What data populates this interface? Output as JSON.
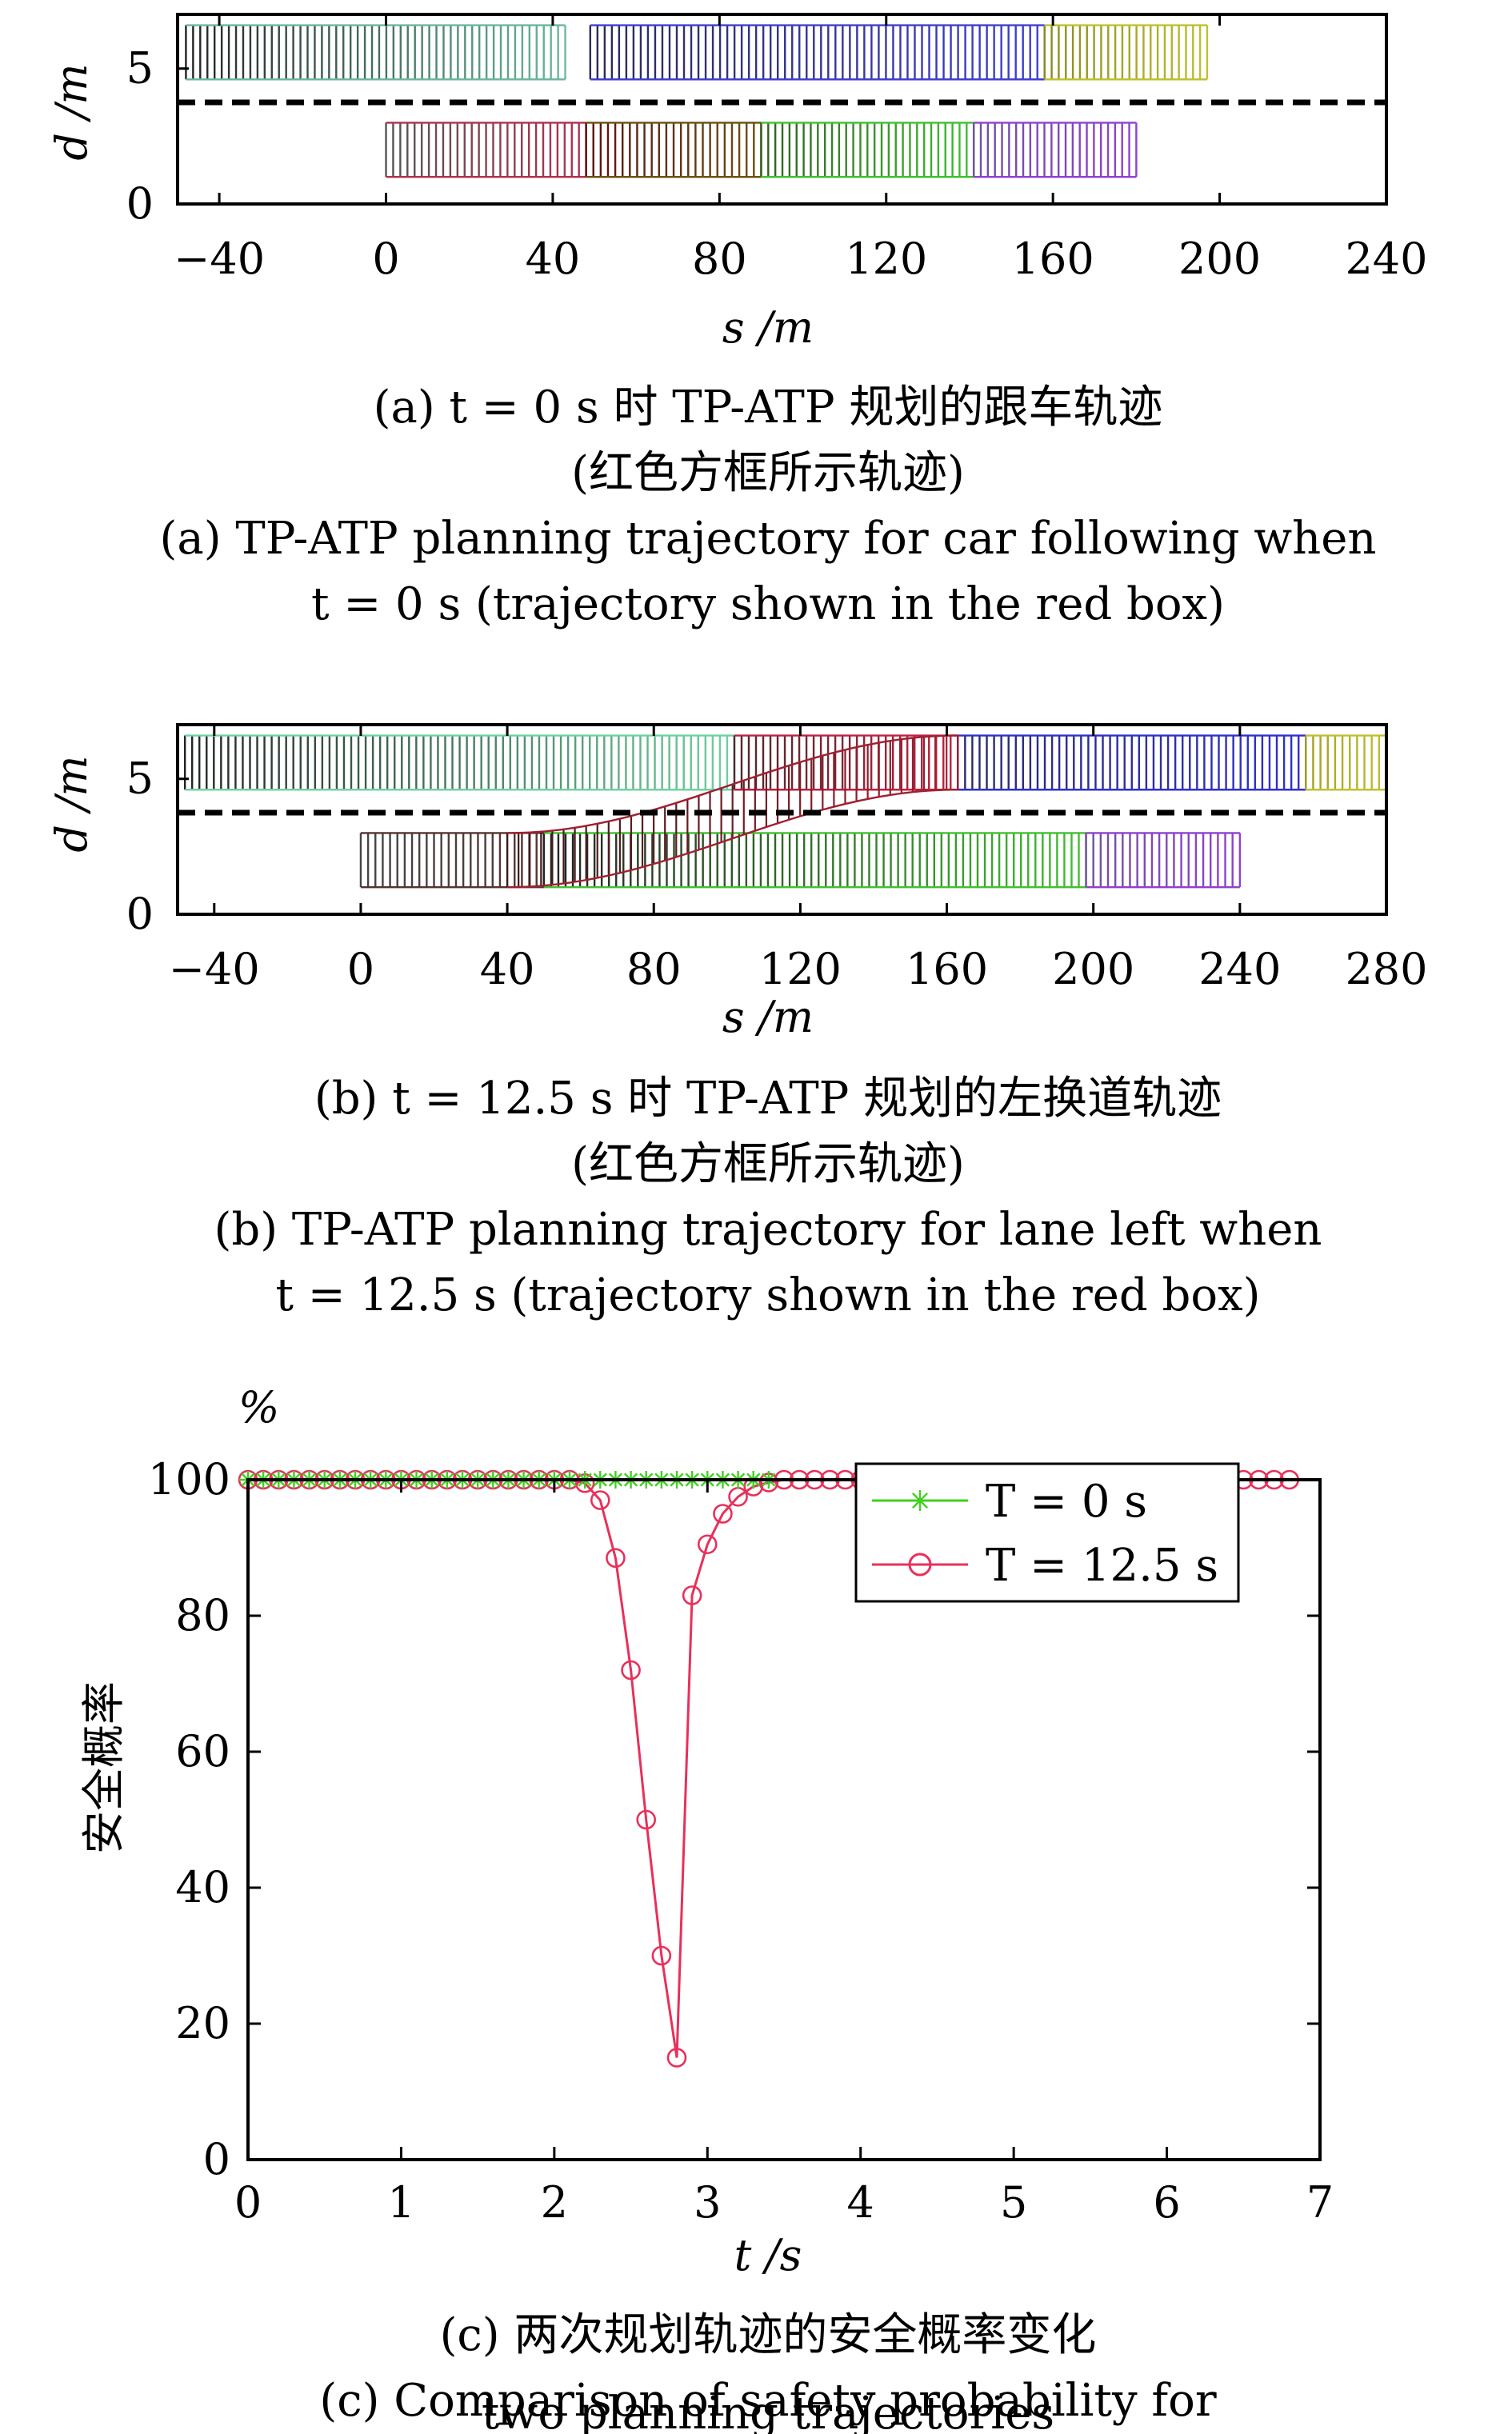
{
  "chart_data": [
    {
      "type": "scatter",
      "xlabel": "s /m",
      "ylabel": "d /m",
      "xlim": [
        -50,
        240
      ],
      "ylim": [
        0,
        7
      ],
      "xticks": [
        "-40",
        "0",
        "40",
        "80",
        "120",
        "160",
        "200",
        "240"
      ],
      "yticks": [
        "0",
        "5"
      ],
      "lane_divider_d": 3.75,
      "boxes": [
        {
          "s0": -48,
          "s1": 43,
          "d0": 4.6,
          "d1": 6.6,
          "color0": "#222222",
          "color1": "#6ab8a0"
        },
        {
          "s0": 49,
          "s1": 158,
          "d0": 4.6,
          "d1": 6.6,
          "color0": "#2a2a55",
          "color1": "#4040d0"
        },
        {
          "s0": 158,
          "s1": 197,
          "d0": 4.6,
          "d1": 6.6,
          "color0": "#8a8a20",
          "color1": "#c0c030"
        },
        {
          "s0": 0,
          "s1": 48,
          "d0": 1.0,
          "d1": 3.0,
          "color0": "#555555",
          "color1": "#b03050"
        },
        {
          "s0": 48,
          "s1": 90,
          "d0": 1.0,
          "d1": 3.0,
          "color0": "#5a1010",
          "color1": "#6a5010"
        },
        {
          "s0": 90,
          "s1": 141,
          "d0": 1.0,
          "d1": 3.0,
          "color0": "#306020",
          "color1": "#40c030"
        },
        {
          "s0": 141,
          "s1": 180,
          "d0": 1.0,
          "d1": 3.0,
          "color0": "#7050a0",
          "color1": "#9040d0"
        }
      ],
      "caption_cn_1": "(a) t = 0 s 时 TP-ATP 规划的跟车轨迹",
      "caption_cn_2": "(红色方框所示轨迹)",
      "caption_en_1": "(a) TP-ATP planning trajectory for car following when",
      "caption_en_2": "t = 0 s (trajectory shown in the red box)"
    },
    {
      "type": "scatter",
      "xlabel": "s /m",
      "ylabel": "d /m",
      "xlim": [
        -50,
        280
      ],
      "ylim": [
        0,
        7
      ],
      "xticks": [
        "-40",
        "0",
        "40",
        "80",
        "120",
        "160",
        "200",
        "240",
        "280"
      ],
      "yticks": [
        "0",
        "5"
      ],
      "lane_divider_d": 3.75,
      "boxes": [
        {
          "s0": -48,
          "s1": 102,
          "d0": 4.6,
          "d1": 6.6,
          "color0": "#222222",
          "color1": "#70d0a0"
        },
        {
          "s0": 102,
          "s1": 163,
          "d0": 4.6,
          "d1": 6.6,
          "color0": "#4a2a2a",
          "color1": "#c02040"
        },
        {
          "s0": 163,
          "s1": 258,
          "d0": 4.6,
          "d1": 6.6,
          "color0": "#2a2a6a",
          "color1": "#3030d0"
        },
        {
          "s0": 258,
          "s1": 280,
          "d0": 4.6,
          "d1": 6.6,
          "color0": "#a0a020",
          "color1": "#c0c030"
        },
        {
          "s0": 0,
          "s1": 50,
          "d0": 1.0,
          "d1": 3.0,
          "color0": "#444444",
          "color1": "#553333"
        },
        {
          "s0": 50,
          "s1": 198,
          "d0": 1.0,
          "d1": 3.0,
          "color0": "#222222",
          "color1": "#40c030"
        },
        {
          "s0": 198,
          "s1": 240,
          "d0": 1.0,
          "d1": 3.0,
          "color0": "#7050a0",
          "color1": "#9040d0"
        }
      ],
      "lane_change": {
        "s0": 40,
        "s1": 163,
        "d0": 2.0,
        "d1": 5.6,
        "color": "#a02030"
      },
      "caption_cn_1": "(b) t = 12.5 s 时 TP-ATP 规划的左换道轨迹",
      "caption_cn_2": "(红色方框所示轨迹)",
      "caption_en_1": "(b)  TP-ATP planning trajectory for lane left when",
      "caption_en_2": "t = 12.5 s (trajectory shown in the red box)"
    },
    {
      "type": "line",
      "xlabel": "t /s",
      "ylabel": "安全概率",
      "unit_label": "%",
      "xlim": [
        0,
        7
      ],
      "ylim": [
        0,
        100
      ],
      "xticks": [
        "0",
        "1",
        "2",
        "3",
        "4",
        "5",
        "6",
        "7"
      ],
      "yticks": [
        "0",
        "20",
        "40",
        "60",
        "80",
        "100"
      ],
      "series": [
        {
          "name": "T = 0 s",
          "color": "#40d020",
          "marker": "asterisk",
          "x": [
            0,
            0.1,
            0.2,
            0.3,
            0.4,
            0.5,
            0.6,
            0.7,
            0.8,
            0.9,
            1.0,
            1.1,
            1.2,
            1.3,
            1.4,
            1.5,
            1.6,
            1.7,
            1.8,
            1.9,
            2.0,
            2.1,
            2.2,
            2.3,
            2.4,
            2.5,
            2.6,
            2.7,
            2.8,
            2.9,
            3.0,
            3.1,
            3.2,
            3.3,
            3.4
          ],
          "y": [
            100,
            100,
            100,
            100,
            100,
            100,
            100,
            100,
            100,
            100,
            100,
            100,
            100,
            100,
            100,
            100,
            100,
            100,
            100,
            100,
            100,
            100,
            100,
            100,
            100,
            100,
            100,
            100,
            100,
            100,
            100,
            100,
            100,
            100,
            100
          ]
        },
        {
          "name": "T = 12.5 s",
          "color": "#e8305a",
          "marker": "circle",
          "x": [
            0,
            0.1,
            0.2,
            0.3,
            0.4,
            0.5,
            0.6,
            0.7,
            0.8,
            0.9,
            1.0,
            1.1,
            1.2,
            1.3,
            1.4,
            1.5,
            1.6,
            1.7,
            1.8,
            1.9,
            2.0,
            2.1,
            2.2,
            2.3,
            2.4,
            2.5,
            2.6,
            2.7,
            2.8,
            2.9,
            3.0,
            3.1,
            3.2,
            3.3,
            3.4,
            3.5,
            3.6,
            3.7,
            3.8,
            3.9,
            4.0,
            4.1,
            4.2,
            4.3,
            4.4,
            4.5,
            4.6,
            4.7,
            4.8,
            4.9,
            5.0,
            5.1,
            5.2,
            5.3,
            5.4,
            5.5,
            5.6,
            5.7,
            5.8,
            5.9,
            6.0,
            6.1,
            6.2,
            6.3,
            6.4,
            6.5,
            6.6,
            6.7,
            6.8
          ],
          "y": [
            100,
            100,
            100,
            100,
            100,
            100,
            100,
            100,
            100,
            100,
            100,
            100,
            100,
            100,
            100,
            100,
            100,
            100,
            100,
            100,
            100,
            100,
            99.5,
            97,
            88.5,
            72,
            50,
            30,
            15,
            83,
            90.5,
            95,
            97.5,
            99,
            99.6,
            100,
            100,
            100,
            100,
            100,
            100,
            100,
            100,
            100,
            100,
            100,
            100,
            100,
            100,
            100,
            100,
            100,
            100,
            100,
            100,
            100,
            100,
            100,
            100,
            100,
            100,
            100,
            100,
            100,
            100,
            100,
            100,
            100,
            100
          ]
        }
      ],
      "legend": "top-right",
      "caption_cn_1": "(c) 两次规划轨迹的安全概率变化",
      "caption_en_1": "(c) Comparison of safety probability for",
      "caption_en_2": "two planning trajectories"
    }
  ]
}
